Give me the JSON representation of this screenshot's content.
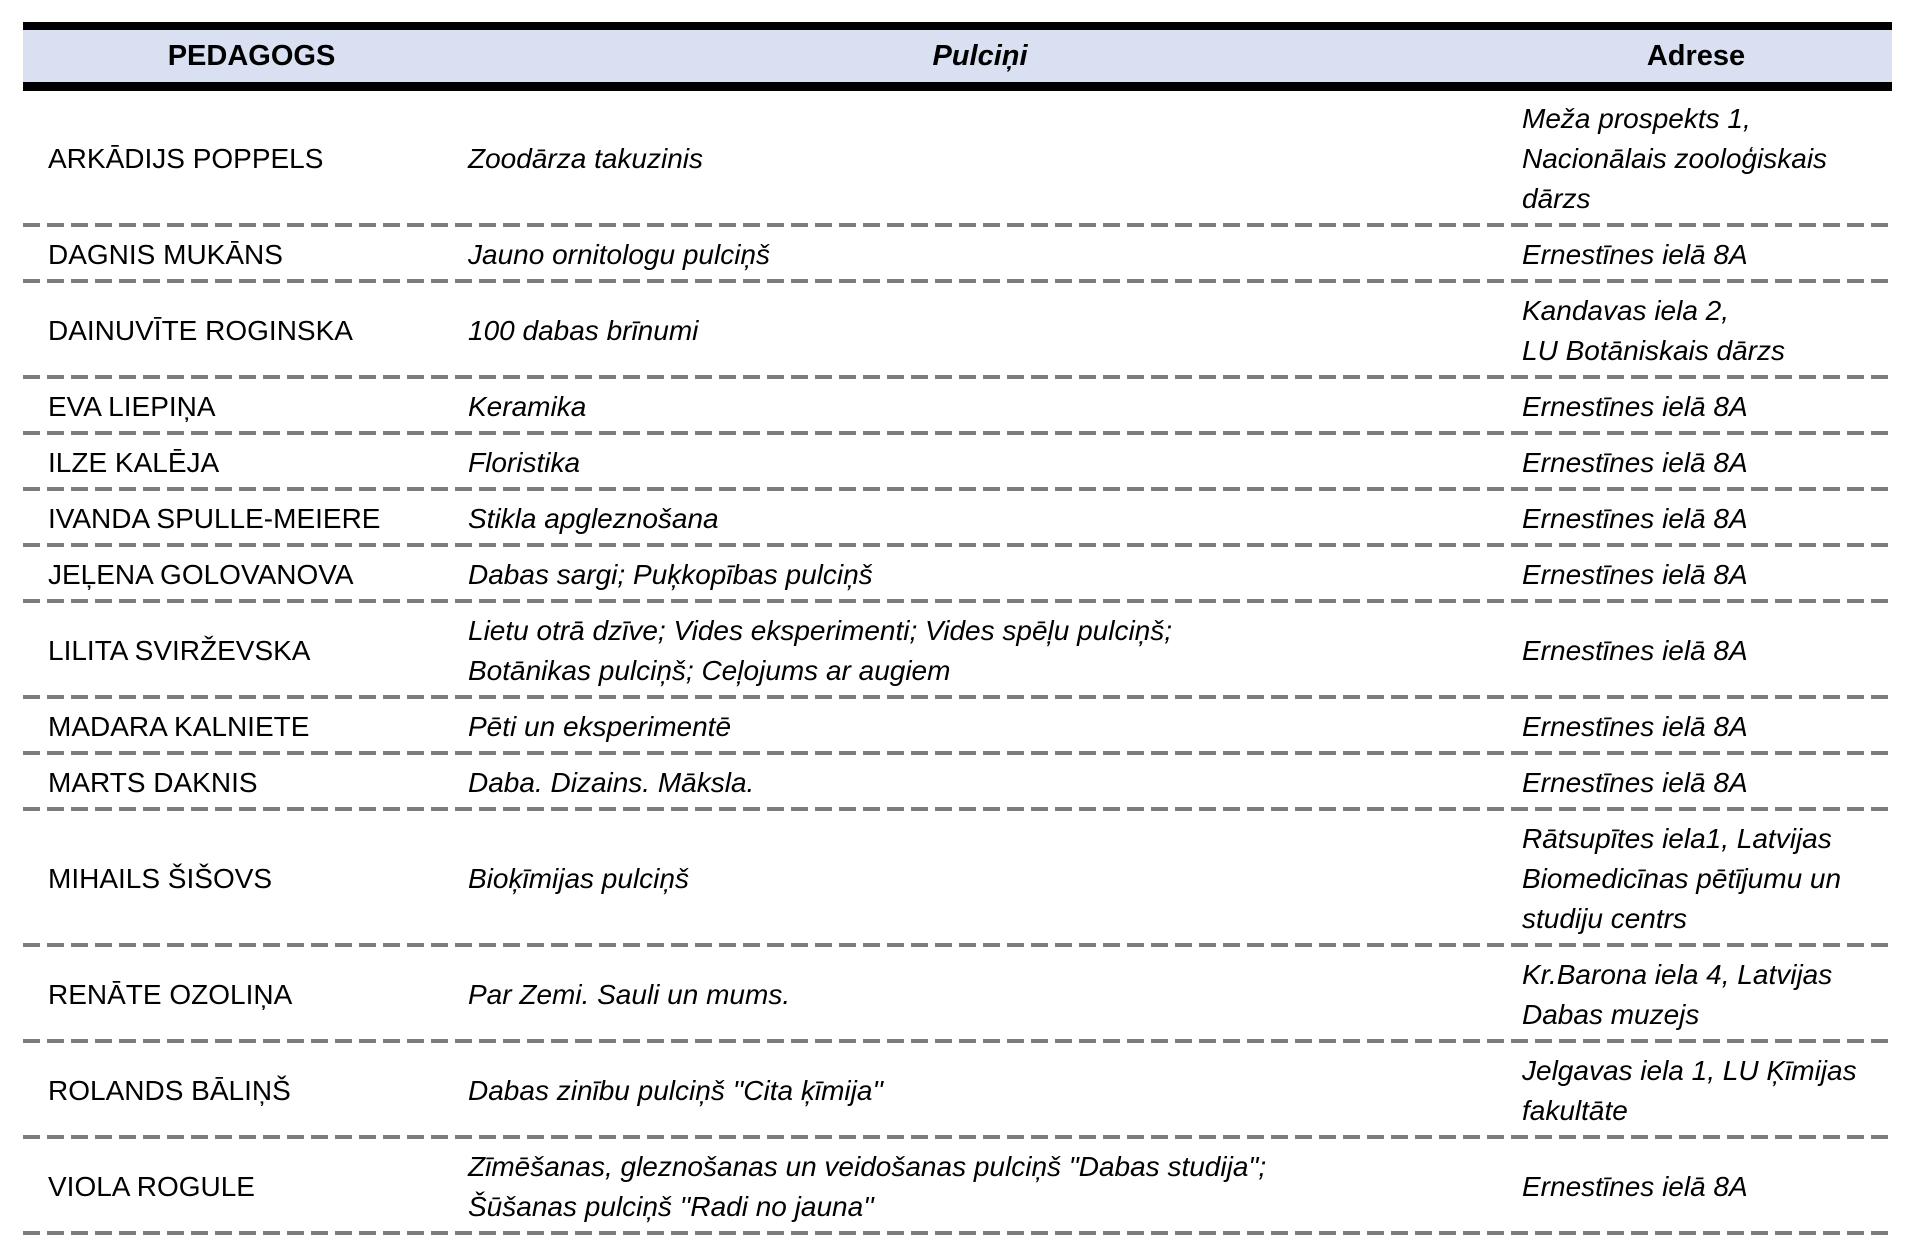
{
  "table": {
    "header": {
      "pedagogs": "PEDAGOGS",
      "pulcini": "Pulciņi",
      "adrese": "Adrese"
    },
    "colors": {
      "header_bg": "#d9e0f2",
      "border": "#000000",
      "dash_line": "#7c7c7c",
      "text": "#000000"
    },
    "rows": [
      {
        "pedagogs": "ARKĀDIJS POPPELS",
        "pulcini": "Zoodārza takuzinis",
        "adrese": "Meža prospekts 1,\nNacionālais zooloģiskais\ndārzs"
      },
      {
        "pedagogs": "DAGNIS MUKĀNS",
        "pulcini": "Jauno ornitologu pulciņš",
        "adrese": "Ernestīnes ielā 8A"
      },
      {
        "pedagogs": "DAINUVĪTE ROGINSKA",
        "pulcini": "100 dabas brīnumi",
        "adrese": "Kandavas iela 2,\nLU Botāniskais dārzs"
      },
      {
        "pedagogs": "EVA LIEPIŅA",
        "pulcini": "Keramika",
        "adrese": "Ernestīnes ielā 8A"
      },
      {
        "pedagogs": "ILZE KALĒJA",
        "pulcini": "Floristika",
        "adrese": "Ernestīnes ielā 8A"
      },
      {
        "pedagogs": "IVANDA SPULLE-MEIERE",
        "pulcini": "Stikla apgleznošana",
        "adrese": "Ernestīnes ielā 8A"
      },
      {
        "pedagogs": "JEĻENA GOLOVANOVA",
        "pulcini": "Dabas sargi; Puķkopības pulciņš",
        "adrese": "Ernestīnes ielā 8A"
      },
      {
        "pedagogs": "LILITA SVIRŽEVSKA",
        "pulcini": "Lietu otrā dzīve; Vides eksperimenti; Vides spēļu pulciņš;\nBotānikas pulciņš; Ceļojums ar augiem",
        "adrese": "Ernestīnes ielā 8A"
      },
      {
        "pedagogs": "MADARA KALNIETE",
        "pulcini": "Pēti un eksperimentē",
        "adrese": "Ernestīnes ielā 8A"
      },
      {
        "pedagogs": "MARTS DAKNIS",
        "pulcini": "Daba. Dizains. Māksla.",
        "adrese": "Ernestīnes ielā 8A"
      },
      {
        "pedagogs": "MIHAILS ŠIŠOVS",
        "pulcini": "Bioķīmijas pulciņš",
        "adrese": "Rātsupītes iela1, Latvijas\nBiomedicīnas pētījumu un\nstudiju centrs"
      },
      {
        "pedagogs": "RENĀTE OZOLIŅA",
        "pulcini": "Par Zemi. Sauli un mums.",
        "adrese": "Kr.Barona iela 4, Latvijas\nDabas muzejs"
      },
      {
        "pedagogs": "ROLANDS BĀLIŅŠ",
        "pulcini": "Dabas zinību pulciņš ''Cita ķīmija''",
        "adrese": "Jelgavas iela 1, LU Ķīmijas\nfakultāte"
      },
      {
        "pedagogs": "VIOLA ROGULE",
        "pulcini": "Zīmēšanas, gleznošanas un veidošanas pulciņš \"Dabas studija\";\nŠūšanas pulciņš ''Radi no jauna''",
        "adrese": "Ernestīnes ielā 8A"
      }
    ]
  }
}
